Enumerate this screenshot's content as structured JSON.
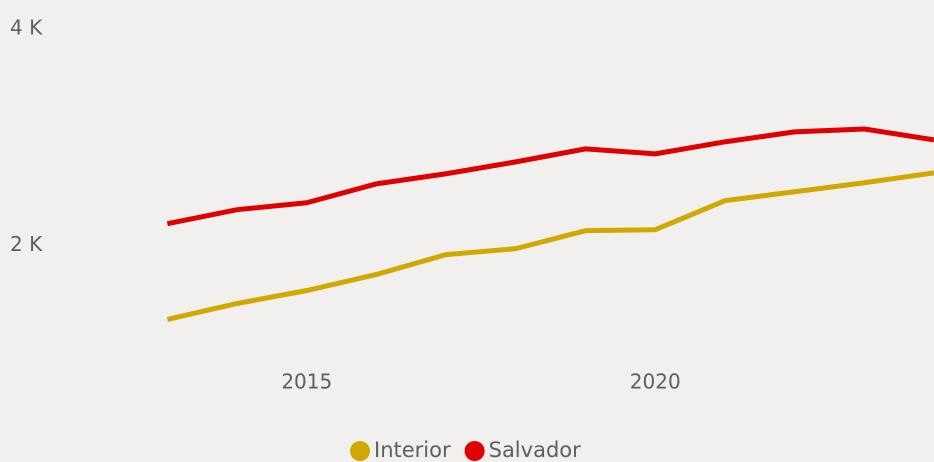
{
  "chart_data": {
    "type": "line",
    "x": [
      2013,
      2014,
      2015,
      2016,
      2017,
      2018,
      2019,
      2020,
      2021,
      2022,
      2023,
      2024
    ],
    "series": [
      {
        "name": "Interior",
        "color": "#d1a800",
        "values": [
          1318,
          1465,
          1585,
          1733,
          1917,
          1972,
          2138,
          2147,
          2415,
          2498,
          2581,
          2673
        ]
      },
      {
        "name": "Salvador",
        "color": "#e00000",
        "values": [
          2203,
          2332,
          2396,
          2571,
          2664,
          2774,
          2894,
          2848,
          2959,
          3051,
          3078,
          2977
        ]
      }
    ],
    "xlim": [
      2011,
      2024
    ],
    "xticks": [
      2015,
      2020
    ],
    "ylim": [
      0,
      4270
    ],
    "yticks": [
      {
        "value": 2000,
        "label": "2 K"
      },
      {
        "value": 4000,
        "label": "4 K"
      }
    ],
    "grid": false,
    "legend": "bottom"
  }
}
